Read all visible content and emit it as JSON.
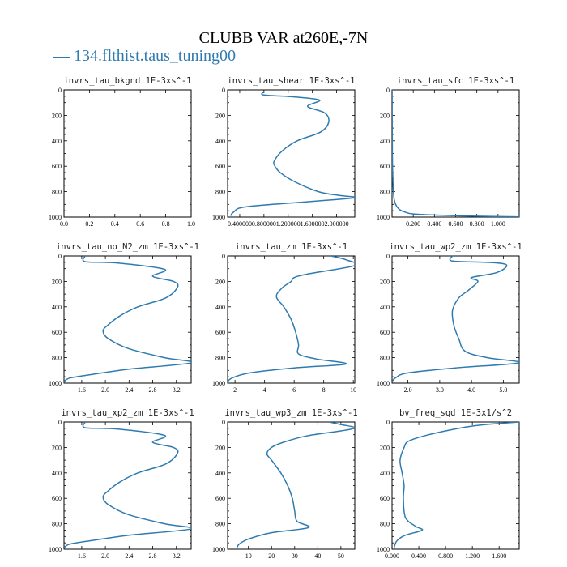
{
  "title": "CLUBB VAR at260E,-7N",
  "legend": {
    "label": "134.flthist.taus_tuning00",
    "color": "#2f7bb0"
  },
  "chart_data": [
    {
      "type": "line",
      "title": "invrs_tau_bkgnd",
      "units": "1E-3xs^-1",
      "xlim": [
        0,
        1
      ],
      "ylim": [
        1000,
        0
      ],
      "xticks": [
        0,
        0.2,
        0.4,
        0.6,
        0.8,
        1.0
      ],
      "xtick_labels": [
        "0.0",
        "0.2",
        "0.4",
        "0.6",
        "0.8",
        "1.0"
      ],
      "yticks": [
        0,
        200,
        400,
        600,
        800,
        1000
      ],
      "ytick_labels": [
        "0",
        "200",
        "400",
        "600",
        "800",
        "1000"
      ],
      "series": [
        {
          "x": [],
          "y": []
        }
      ]
    },
    {
      "type": "line",
      "title": "invrs_tau_shear",
      "units": "1E-3xs^-1",
      "xlim": [
        0.2,
        2.3
      ],
      "ylim": [
        1000,
        0
      ],
      "xticks": [
        0.4,
        0.8,
        1.2,
        1.6,
        2.0
      ],
      "xtick_labels": [
        "0.400000",
        "0.800000",
        "1.200000",
        "1.600000",
        "2.000000"
      ],
      "yticks": [
        0,
        200,
        400,
        600,
        800,
        1000
      ],
      "ytick_labels": [
        "0",
        "200",
        "400",
        "600",
        "800",
        "1000"
      ],
      "series": [
        {
          "x": [
            0.8,
            0.8,
            1.3,
            1.72,
            1.52,
            1.8,
            1.87,
            1.74,
            1.35,
            1.1,
            0.98,
            0.97,
            1.07,
            1.3,
            1.7,
            2.05,
            2.3,
            1.5,
            0.5,
            0.3,
            0.25
          ],
          "y": [
            15,
            40,
            55,
            80,
            130,
            180,
            250,
            330,
            400,
            480,
            550,
            590,
            650,
            720,
            800,
            830,
            848,
            880,
            920,
            960,
            990
          ]
        }
      ]
    },
    {
      "type": "line",
      "title": "invrs_tau_sfc",
      "units": "1E-3xs^-1",
      "xlim": [
        0,
        1.2
      ],
      "ylim": [
        1000,
        0
      ],
      "xticks": [
        0.2,
        0.4,
        0.6,
        0.8,
        1.0
      ],
      "xtick_labels": [
        "0.200",
        "0.400",
        "0.600",
        "0.800",
        "1.000"
      ],
      "yticks": [
        0,
        200,
        400,
        600,
        800,
        1000
      ],
      "ytick_labels": [
        "0",
        "200",
        "400",
        "600",
        "800",
        "1000"
      ],
      "series": [
        {
          "x": [
            0.001,
            0.003,
            0.01,
            0.02,
            0.04,
            0.07,
            0.12,
            0.2,
            0.45,
            0.8,
            1.2
          ],
          "y": [
            0,
            500,
            750,
            860,
            910,
            940,
            960,
            975,
            985,
            993,
            998
          ]
        }
      ]
    },
    {
      "type": "line",
      "title": "invrs_tau_no_N2_zm",
      "units": "1E-3xs^-1",
      "xlim": [
        1.3,
        3.45
      ],
      "ylim": [
        1000,
        0
      ],
      "xticks": [
        1.6,
        2.0,
        2.4,
        2.8,
        3.2
      ],
      "xtick_labels": [
        "1.6",
        "2.0",
        "2.4",
        "2.8",
        "3.2"
      ],
      "yticks": [
        0,
        200,
        400,
        600,
        800,
        1000
      ],
      "ytick_labels": [
        "0",
        "200",
        "400",
        "600",
        "800",
        "1000"
      ],
      "series": [
        {
          "x": [
            1.66,
            1.66,
            2.2,
            3.0,
            2.8,
            3.15,
            3.22,
            3.02,
            2.55,
            2.25,
            2.05,
            1.96,
            2.05,
            2.4,
            3.0,
            3.45,
            2.4,
            1.8,
            1.4,
            1.3
          ],
          "y": [
            0,
            45,
            55,
            105,
            160,
            200,
            245,
            330,
            400,
            470,
            540,
            590,
            650,
            730,
            800,
            840,
            890,
            930,
            960,
            990
          ]
        }
      ]
    },
    {
      "type": "line",
      "title": "invrs_tau_zm",
      "units": "1E-3xs^-1",
      "xlim": [
        1.5,
        10.1
      ],
      "ylim": [
        1000,
        0
      ],
      "xticks": [
        2,
        4,
        6,
        8,
        10
      ],
      "xtick_labels": [
        "2",
        "4",
        "6",
        "8",
        "10"
      ],
      "yticks": [
        0,
        200,
        400,
        600,
        800,
        1000
      ],
      "ytick_labels": [
        "0",
        "200",
        "400",
        "600",
        "800",
        "1000"
      ],
      "series": [
        {
          "x": [
            8.5,
            9.5,
            10.1,
            7.0,
            6.0,
            5.8,
            5.2,
            4.8,
            5.3,
            5.8,
            6.1,
            6.3,
            6.3,
            7.5,
            9.5,
            6.0,
            3.0,
            1.8,
            1.5
          ],
          "y": [
            0,
            30,
            75,
            140,
            170,
            200,
            250,
            320,
            400,
            500,
            600,
            700,
            770,
            810,
            850,
            880,
            920,
            960,
            990
          ]
        }
      ]
    },
    {
      "type": "line",
      "title": "invrs_tau_wp2_zm",
      "units": "1E-3xs^-1",
      "xlim": [
        1.5,
        5.5
      ],
      "ylim": [
        1000,
        0
      ],
      "xticks": [
        2.0,
        3.0,
        4.0,
        5.0
      ],
      "xtick_labels": [
        "2.0",
        "3.0",
        "4.0",
        "5.0"
      ],
      "yticks": [
        0,
        200,
        400,
        600,
        800,
        1000
      ],
      "ytick_labels": [
        "0",
        "200",
        "400",
        "600",
        "800",
        "1000"
      ],
      "series": [
        {
          "x": [
            3.4,
            3.4,
            4.5,
            5.1,
            4.8,
            4.0,
            4.2,
            3.9,
            3.6,
            3.4,
            3.45,
            3.6,
            3.8,
            4.5,
            5.5,
            3.5,
            2.0,
            1.6,
            1.5
          ],
          "y": [
            0,
            40,
            50,
            70,
            130,
            170,
            200,
            270,
            330,
            430,
            550,
            650,
            750,
            800,
            840,
            880,
            920,
            960,
            990
          ]
        }
      ]
    },
    {
      "type": "line",
      "title": "invrs_tau_xp2_zm",
      "units": "1E-3xs^-1",
      "xlim": [
        1.3,
        3.45
      ],
      "ylim": [
        1000,
        0
      ],
      "xticks": [
        1.6,
        2.0,
        2.4,
        2.8,
        3.2
      ],
      "xtick_labels": [
        "1.6",
        "2.0",
        "2.4",
        "2.8",
        "3.2"
      ],
      "yticks": [
        0,
        200,
        400,
        600,
        800,
        1000
      ],
      "ytick_labels": [
        "0",
        "200",
        "400",
        "600",
        "800",
        "1000"
      ],
      "series": [
        {
          "x": [
            1.66,
            1.66,
            2.2,
            3.0,
            2.8,
            3.15,
            3.22,
            3.02,
            2.55,
            2.25,
            2.05,
            1.96,
            2.05,
            2.4,
            3.0,
            3.45,
            2.4,
            1.8,
            1.4,
            1.3
          ],
          "y": [
            0,
            45,
            55,
            105,
            160,
            200,
            245,
            330,
            400,
            470,
            540,
            590,
            650,
            730,
            800,
            840,
            890,
            930,
            960,
            990
          ]
        }
      ]
    },
    {
      "type": "line",
      "title": "invrs_tau_wp3_zm",
      "units": "1E-3xs^-1",
      "xlim": [
        1,
        56
      ],
      "ylim": [
        1000,
        0
      ],
      "xticks": [
        10,
        20,
        30,
        40,
        50
      ],
      "xtick_labels": [
        "10",
        "20",
        "30",
        "40",
        "50"
      ],
      "yticks": [
        0,
        200,
        400,
        600,
        800,
        1000
      ],
      "ytick_labels": [
        "0",
        "200",
        "400",
        "600",
        "800",
        "1000"
      ],
      "series": [
        {
          "x": [
            45,
            50,
            56,
            50,
            35,
            25,
            20,
            18,
            20,
            24,
            27,
            29,
            30,
            31,
            36,
            20,
            10,
            6,
            5
          ],
          "y": [
            0,
            20,
            45,
            70,
            110,
            160,
            200,
            250,
            300,
            400,
            500,
            600,
            700,
            780,
            830,
            870,
            920,
            960,
            990
          ]
        }
      ]
    },
    {
      "type": "line",
      "title": "bv_freq_sqd",
      "units": "1E-3x1/s^2",
      "xlim": [
        0,
        1.9
      ],
      "ylim": [
        1000,
        0
      ],
      "xticks": [
        0.0,
        0.4,
        0.8,
        1.2,
        1.6
      ],
      "xtick_labels": [
        "0.000",
        "0.400",
        "0.800",
        "1.200",
        "1.600"
      ],
      "yticks": [
        0,
        200,
        400,
        600,
        800,
        1000
      ],
      "ytick_labels": [
        "0",
        "200",
        "400",
        "600",
        "800",
        "1000"
      ],
      "series": [
        {
          "x": [
            1.9,
            1.4,
            1.1,
            0.55,
            0.25,
            0.18,
            0.12,
            0.15,
            0.18,
            0.17,
            0.2,
            0.35,
            0.45,
            0.2,
            0.08,
            0.04,
            0.03
          ],
          "y": [
            0,
            20,
            40,
            100,
            150,
            200,
            300,
            400,
            500,
            600,
            750,
            820,
            850,
            890,
            930,
            970,
            995
          ]
        }
      ]
    }
  ]
}
